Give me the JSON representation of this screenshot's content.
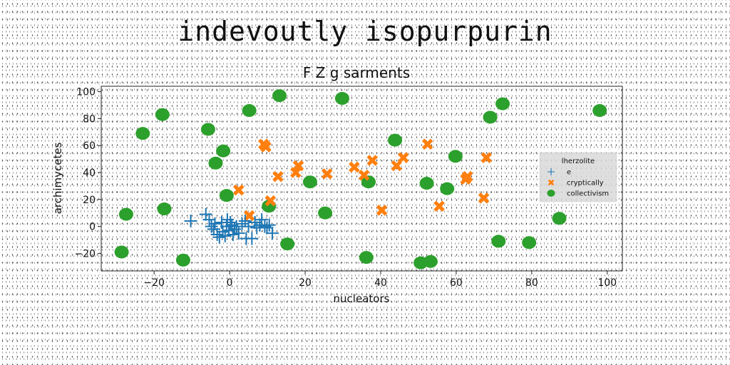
{
  "suptitle": "indevoutly isopurpurin",
  "chart_data": {
    "type": "scatter",
    "title": "F Z g sarments",
    "xlabel": "nucleators",
    "ylabel": "archimycetes",
    "xlim": [
      -34,
      104
    ],
    "ylim": [
      -33,
      104
    ],
    "xticks": [
      -20,
      0,
      20,
      40,
      60,
      80,
      100
    ],
    "yticks": [
      -20,
      0,
      20,
      40,
      60,
      80,
      100
    ],
    "grid": false,
    "legend": {
      "title": "lherzolite",
      "position": "right"
    },
    "series": [
      {
        "name": "e",
        "marker": "plus",
        "color": "#1f77b4",
        "x": [
          -10.3,
          -6.3,
          -5.4,
          -4.8,
          -4.2,
          -3.9,
          -3.3,
          -2.7,
          -2.1,
          -1.8,
          -1.2,
          -0.8,
          -0.6,
          -0.2,
          0.2,
          0.6,
          0.9,
          1.3,
          1.8,
          2.4,
          3.3,
          4.1,
          4.4,
          5.0,
          5.9,
          6.7,
          7.2,
          8.0,
          8.5,
          9.3,
          9.9,
          10.5,
          11.3
        ],
        "y": [
          4.0,
          9.0,
          5.0,
          0.0,
          -2.0,
          2.0,
          -6.0,
          -8.0,
          3.0,
          -4.0,
          -7.0,
          0.0,
          5.0,
          -3.0,
          3.0,
          1.0,
          -6.0,
          -2.0,
          0.0,
          -5.0,
          2.0,
          4.0,
          -9.0,
          0.0,
          -9.0,
          3.0,
          -1.0,
          1.0,
          5.0,
          0.0,
          -1.0,
          1.0,
          -5.0
        ]
      },
      {
        "name": "cryptically",
        "marker": "x",
        "color": "#ff7f0e",
        "x": [
          2.4,
          5.2,
          9.0,
          9.6,
          10.8,
          12.8,
          17.5,
          18.2,
          25.8,
          33.0,
          35.6,
          37.8,
          40.3,
          44.2,
          46.0,
          52.4,
          55.5,
          62.5,
          63.0,
          67.3,
          68.0
        ],
        "y": [
          27.0,
          8.0,
          61.0,
          59.0,
          19.0,
          37.0,
          40.0,
          45.0,
          39.0,
          44.0,
          38.0,
          49.0,
          12.0,
          45.0,
          51.0,
          61.0,
          15.0,
          35.0,
          37.0,
          21.0,
          51.0
        ]
      },
      {
        "name": "collectivism",
        "marker": "circle",
        "color": "#2ca02c",
        "x": [
          -28.6,
          -27.4,
          -23.0,
          -17.8,
          -17.3,
          -12.3,
          -5.7,
          -3.7,
          -1.7,
          -0.8,
          5.2,
          10.4,
          13.2,
          15.3,
          21.3,
          25.3,
          29.8,
          36.2,
          36.8,
          43.8,
          50.6,
          52.2,
          53.2,
          57.6,
          59.8,
          69.0,
          71.2,
          72.3,
          79.3,
          87.3,
          98.0
        ],
        "y": [
          -19.0,
          9.0,
          69.0,
          83.0,
          13.0,
          -25.0,
          72.0,
          47.0,
          56.0,
          23.0,
          86.0,
          15.0,
          97.0,
          -13.0,
          33.0,
          10.0,
          95.0,
          -23.0,
          33.0,
          64.0,
          -27.0,
          32.0,
          -26.0,
          28.0,
          52.0,
          81.0,
          -11.0,
          91.0,
          -12.0,
          6.0,
          86.0
        ]
      }
    ]
  }
}
